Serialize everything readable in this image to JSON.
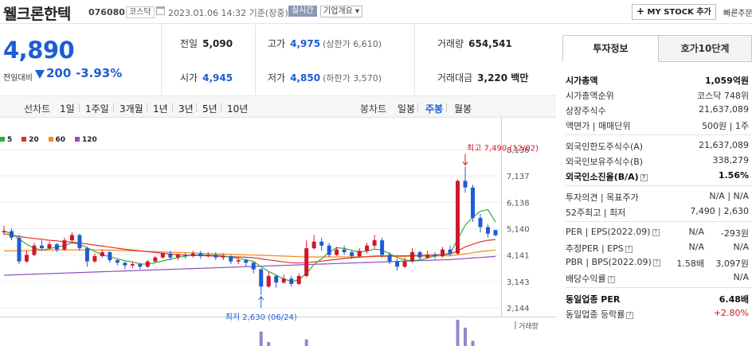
{
  "header": {
    "name": "웰크론한텍",
    "code": "076080",
    "market": "코스닥",
    "datetime": "2023.01.06 14:32 기준(장중)",
    "live_badge": "실시간",
    "overview": "기업개요",
    "mystock_label": "MY STOCK 추가",
    "quick_label": "빠른주문"
  },
  "price": {
    "current": "4,890",
    "compare_label": "전일대비",
    "change": "200",
    "change_pct": "-3.93%",
    "colors": {
      "down": "#1e5cd6",
      "up": "#d0152e"
    }
  },
  "stats": {
    "prev_close": {
      "label": "전일",
      "value": "5,090"
    },
    "open": {
      "label": "시가",
      "value": "4,945"
    },
    "high": {
      "label": "고가",
      "value": "4,975",
      "limit_label": "(상한가 6,610)"
    },
    "low": {
      "label": "저가",
      "value": "4,850",
      "limit_label": "(하한가 3,570)"
    },
    "volume": {
      "label": "거래량",
      "value": "654,541"
    },
    "amount": {
      "label": "거래대금",
      "value": "3,220 백만"
    }
  },
  "controls": {
    "line_chart": "선차트",
    "periods": [
      "1일",
      "1주일",
      "3개월",
      "1년",
      "3년",
      "5년",
      "10년"
    ],
    "candle_chart": "봉차트",
    "candle_types": [
      "일봉",
      "주봉",
      "월봉"
    ],
    "active_candle": "주봉"
  },
  "chart_data": {
    "type": "candlestick",
    "legend": [
      {
        "name": "5",
        "color": "#3aaa35"
      },
      {
        "name": "20",
        "color": "#e0322d"
      },
      {
        "name": "60",
        "color": "#f08c1e"
      },
      {
        "name": "120",
        "color": "#8a4fbf"
      }
    ],
    "y_ticks": [
      "8,136",
      "7,137",
      "6,138",
      "5,140",
      "4,141",
      "3,143",
      "2,144"
    ],
    "y_tick_values": [
      8136,
      7137,
      6138,
      5140,
      4141,
      3143,
      2144
    ],
    "annotations": {
      "high": {
        "text": "최고 7,490 (12/02)",
        "value": 7490
      },
      "low": {
        "text": "최저 2,630 (06/24)",
        "value": 2630
      }
    },
    "volume_label": "거래량",
    "candles": [
      [
        5000,
        5050,
        5250,
        4900
      ],
      [
        5050,
        4800,
        5150,
        4700
      ],
      [
        4800,
        3900,
        4900,
        3800
      ],
      [
        3900,
        4150,
        4300,
        3850
      ],
      [
        4150,
        4500,
        4600,
        4100
      ],
      [
        4500,
        4400,
        4700,
        4300
      ],
      [
        4400,
        4550,
        4650,
        4350
      ],
      [
        4550,
        4350,
        4600,
        4250
      ],
      [
        4350,
        4700,
        4800,
        4300
      ],
      [
        4700,
        4900,
        5000,
        4650
      ],
      [
        4900,
        4400,
        4950,
        4300
      ],
      [
        4400,
        3900,
        4450,
        3700
      ],
      [
        3900,
        4100,
        4200,
        3850
      ],
      [
        4100,
        4250,
        4350,
        4050
      ],
      [
        4250,
        3950,
        4300,
        3850
      ],
      [
        3950,
        3850,
        4000,
        3750
      ],
      [
        3850,
        3750,
        3900,
        3600
      ],
      [
        3750,
        3800,
        3900,
        3650
      ],
      [
        3800,
        3700,
        3850,
        3600
      ],
      [
        3700,
        3900,
        3950,
        3650
      ],
      [
        3900,
        4050,
        4100,
        3850
      ],
      [
        4050,
        4200,
        4250,
        4000
      ],
      [
        4200,
        4050,
        4300,
        3950
      ],
      [
        4050,
        4150,
        4200,
        3950
      ],
      [
        4150,
        4100,
        4250,
        4000
      ],
      [
        4100,
        4200,
        4300,
        4050
      ],
      [
        4200,
        4100,
        4300,
        4000
      ],
      [
        4100,
        4150,
        4250,
        4050
      ],
      [
        4150,
        4050,
        4250,
        3950
      ],
      [
        4050,
        4100,
        4200,
        3950
      ],
      [
        4100,
        3900,
        4150,
        3800
      ],
      [
        3900,
        3950,
        4050,
        3800
      ],
      [
        3950,
        3850,
        4000,
        3700
      ],
      [
        3850,
        3600,
        3900,
        3450
      ],
      [
        3600,
        2950,
        3650,
        2630
      ],
      [
        2950,
        3350,
        3500,
        2900
      ],
      [
        3350,
        3100,
        3400,
        2900
      ],
      [
        3100,
        3250,
        3400,
        3050
      ],
      [
        3250,
        3050,
        3350,
        2950
      ],
      [
        3050,
        3350,
        3450,
        3000
      ],
      [
        3350,
        4400,
        4700,
        3300
      ],
      [
        4400,
        4650,
        4900,
        4350
      ],
      [
        4650,
        4500,
        4800,
        4300
      ],
      [
        4500,
        4150,
        4600,
        4050
      ],
      [
        4150,
        4350,
        4450,
        4100
      ],
      [
        4350,
        4250,
        4500,
        4150
      ],
      [
        4250,
        4100,
        4300,
        4000
      ],
      [
        4100,
        4300,
        4400,
        4050
      ],
      [
        4300,
        4500,
        4600,
        4200
      ],
      [
        4500,
        4700,
        4900,
        4400
      ],
      [
        4700,
        4150,
        4800,
        4050
      ],
      [
        4150,
        3900,
        4250,
        3800
      ],
      [
        3900,
        3700,
        4000,
        3550
      ],
      [
        3700,
        3900,
        4050,
        3650
      ],
      [
        3900,
        4250,
        4400,
        3850
      ],
      [
        4250,
        4050,
        4300,
        3950
      ],
      [
        4050,
        4150,
        4300,
        4000
      ],
      [
        4150,
        4100,
        4250,
        4000
      ],
      [
        4100,
        4350,
        4450,
        4050
      ],
      [
        4350,
        4200,
        4500,
        4100
      ],
      [
        4200,
        6950,
        7000,
        4150
      ],
      [
        6950,
        6700,
        7490,
        6500
      ],
      [
        6700,
        5550,
        6800,
        5400
      ],
      [
        5550,
        5200,
        5700,
        5000
      ],
      [
        5200,
        4950,
        5300,
        4800
      ],
      [
        5090,
        4890,
        4975,
        4850
      ]
    ],
    "ma5": [
      5050,
      4950,
      4750,
      4550,
      4400,
      4330,
      4380,
      4450,
      4500,
      4600,
      4550,
      4420,
      4280,
      4150,
      4080,
      4000,
      3930,
      3880,
      3810,
      3800,
      3850,
      3920,
      3980,
      4050,
      4100,
      4140,
      4150,
      4140,
      4140,
      4110,
      4060,
      4020,
      3970,
      3900,
      3700,
      3520,
      3380,
      3240,
      3140,
      3200,
      3460,
      3780,
      4000,
      4250,
      4420,
      4390,
      4320,
      4250,
      4290,
      4370,
      4330,
      4190,
      4050,
      3950,
      3930,
      3960,
      4030,
      4110,
      4170,
      4200,
      4740,
      5270,
      5580,
      5800,
      5860,
      5390
    ],
    "ma20": [
      4950,
      4900,
      4850,
      4800,
      4770,
      4740,
      4700,
      4680,
      4650,
      4630,
      4600,
      4560,
      4520,
      4480,
      4440,
      4400,
      4360,
      4330,
      4300,
      4270,
      4240,
      4210,
      4180,
      4160,
      4140,
      4130,
      4120,
      4110,
      4100,
      4090,
      4080,
      4070,
      4060,
      4040,
      4000,
      3960,
      3920,
      3880,
      3850,
      3840,
      3850,
      3880,
      3910,
      3950,
      3980,
      4010,
      4040,
      4060,
      4080,
      4100,
      4110,
      4110,
      4110,
      4110,
      4120,
      4130,
      4140,
      4150,
      4160,
      4170,
      4300,
      4450,
      4550,
      4640,
      4700,
      4730
    ],
    "ma60": [
      4300,
      4300,
      4310,
      4310,
      4320,
      4320,
      4330,
      4330,
      4340,
      4340,
      4340,
      4340,
      4340,
      4330,
      4330,
      4320,
      4310,
      4300,
      4290,
      4280,
      4270,
      4260,
      4250,
      4240,
      4230,
      4220,
      4210,
      4200,
      4190,
      4180,
      4170,
      4160,
      4150,
      4140,
      4130,
      4120,
      4110,
      4100,
      4090,
      4080,
      4070,
      4070,
      4070,
      4070,
      4070,
      4070,
      4070,
      4080,
      4080,
      4080,
      4090,
      4090,
      4090,
      4090,
      4100,
      4100,
      4100,
      4100,
      4110,
      4110,
      4150,
      4190,
      4230,
      4270,
      4300,
      4330
    ],
    "ma120": [
      3380,
      3390,
      3400,
      3410,
      3420,
      3430,
      3440,
      3450,
      3460,
      3470,
      3480,
      3490,
      3500,
      3510,
      3520,
      3530,
      3540,
      3550,
      3560,
      3570,
      3580,
      3590,
      3600,
      3610,
      3620,
      3630,
      3640,
      3650,
      3660,
      3670,
      3680,
      3690,
      3700,
      3710,
      3720,
      3730,
      3740,
      3750,
      3760,
      3770,
      3780,
      3790,
      3800,
      3810,
      3820,
      3830,
      3840,
      3850,
      3860,
      3870,
      3880,
      3890,
      3900,
      3910,
      3920,
      3930,
      3940,
      3950,
      3960,
      3970,
      3990,
      4010,
      4030,
      4050,
      4070,
      4090
    ],
    "volume_bars": [
      {
        "index": 34,
        "value": 0.55
      },
      {
        "index": 35,
        "value": 0.15
      },
      {
        "index": 40,
        "value": 0.25
      },
      {
        "index": 60,
        "value": 1.0
      },
      {
        "index": 61,
        "value": 0.7
      },
      {
        "index": 62,
        "value": 0.2
      }
    ]
  },
  "right_panel": {
    "tabs": [
      "투자정보",
      "호가10단계"
    ],
    "rows1": [
      {
        "label": "시가총액",
        "value": "1,059억원",
        "bold": true
      },
      {
        "label": "시가총액순위",
        "value": "코스닥 748위"
      },
      {
        "label": "상장주식수",
        "value": "21,637,089"
      },
      {
        "label": "액면가 | 매매단위",
        "value": "500원 | 1주"
      }
    ],
    "rows2": [
      {
        "label": "외국인한도주식수(A)",
        "value": "21,637,089"
      },
      {
        "label": "외국인보유주식수(B)",
        "value": "338,279"
      },
      {
        "label": "외국인소진율(B/A)",
        "value": "1.56%",
        "bold": true
      }
    ],
    "rows3": [
      {
        "label": "투자의견 | 목표주가",
        "value": "N/A | N/A"
      },
      {
        "label": "52주최고 | 최저",
        "value": "7,490 | 2,630"
      }
    ],
    "rows4": [
      {
        "label": "PER | EPS(2022.09)",
        "mid": "N/A",
        "value": "-293원"
      },
      {
        "label": "추정PER | EPS",
        "mid": "N/A",
        "value": "N/A"
      },
      {
        "label": "PBR | BPS(2022.09)",
        "mid": "1.58배",
        "value": "3,097원"
      },
      {
        "label": "배당수익률",
        "value": "N/A"
      }
    ],
    "rows5": [
      {
        "label": "동일업종 PER",
        "value": "6.48배",
        "bold": true
      },
      {
        "label": "동일업종 등락률",
        "value": "+2.80%",
        "red": true
      }
    ]
  }
}
